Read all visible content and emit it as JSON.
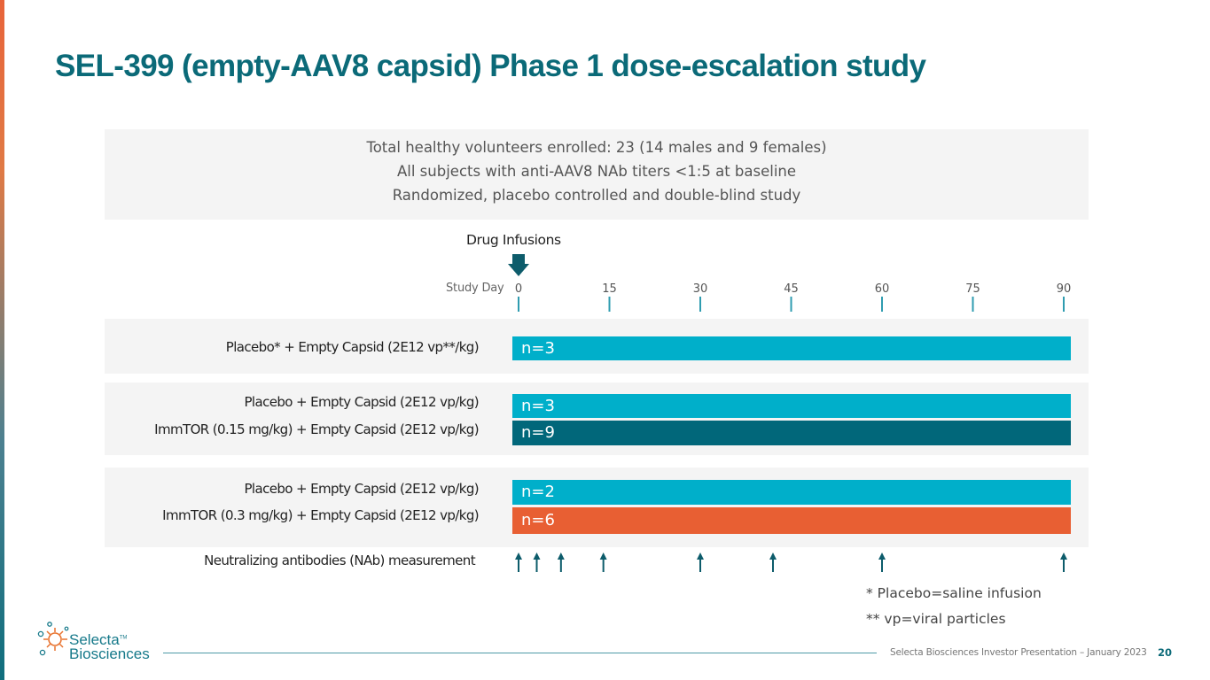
{
  "title": "SEL-399 (empty-AAV8 capsid) Phase 1 dose-escalation study",
  "summary": [
    "Total healthy volunteers enrolled: 23 (14 males and 9 females)",
    "All subjects with anti-AAV8 NAb titers <1:5 at baseline",
    "Randomized, placebo controlled and double-blind study"
  ],
  "timeline": {
    "drug_infusions_label": "Drug Infusions",
    "study_day_label": "Study Day",
    "ticks": [
      0,
      15,
      30,
      45,
      60,
      75,
      90
    ],
    "tick_labels": [
      "0",
      "15",
      "30",
      "45",
      "60",
      "75",
      "90"
    ],
    "infusion_day": 0
  },
  "cohorts": [
    {
      "rows": [
        {
          "label": "Placebo* + Empty Capsid (2E12 vp**/kg)",
          "n_label": "n=3",
          "color": "#00afca"
        }
      ]
    },
    {
      "rows": [
        {
          "label": "Placebo + Empty Capsid (2E12 vp/kg)",
          "n_label": "n=3",
          "color": "#00afca"
        },
        {
          "label": "ImmTOR (0.15 mg/kg) + Empty Capsid (2E12 vp/kg)",
          "n_label": "n=9",
          "color": "#01677a"
        }
      ]
    },
    {
      "rows": [
        {
          "label": "Placebo + Empty Capsid (2E12 vp/kg)",
          "n_label": "n=2",
          "color": "#00afca"
        },
        {
          "label": "ImmTOR (0.3 mg/kg) + Empty Capsid (2E12 vp/kg)",
          "n_label": "n=6",
          "color": "#e85f33"
        }
      ]
    }
  ],
  "nab": {
    "label": "Neutralizing antibodies (NAb) measurement",
    "days": [
      0,
      3,
      7,
      14,
      30,
      42,
      60,
      90
    ]
  },
  "footnotes": [
    "*  Placebo=saline infusion",
    "**  vp=viral particles"
  ],
  "logo": {
    "line1": "Selecta",
    "line2": "Biosciences",
    "mark": "TM"
  },
  "footer": {
    "text": "Selecta Biosciences Investor Presentation – January 2023",
    "page": "20"
  },
  "colors": {
    "title": "#0b6a78",
    "arrow": "#0d5c6b",
    "tick": "#2f9cb0",
    "placebo": "#00afca",
    "immtor_low": "#01677a",
    "immtor_high": "#e85f33"
  }
}
